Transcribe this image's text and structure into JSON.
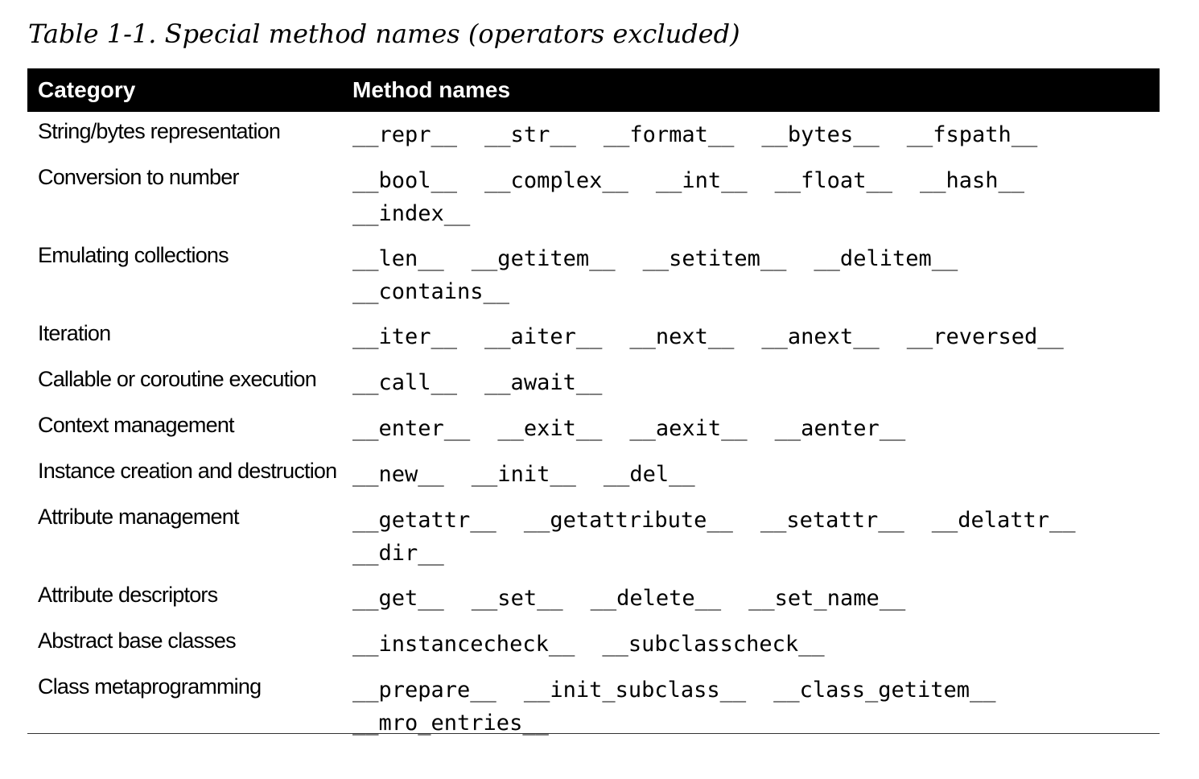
{
  "caption": "Table 1-1. Special method names (operators excluded)",
  "header": {
    "category": "Category",
    "methods": "Method names"
  },
  "rows": [
    {
      "category": "String/bytes representation",
      "methods": [
        "__repr__",
        "__str__",
        "__format__",
        "__bytes__",
        "__fspath__"
      ]
    },
    {
      "category": "Conversion to number",
      "methods": [
        "__bool__",
        "__complex__",
        "__int__",
        "__float__",
        "__hash__",
        "__index__"
      ]
    },
    {
      "category": "Emulating collections",
      "methods": [
        "__len__",
        "__getitem__",
        "__setitem__",
        "__delitem__",
        "__contains__"
      ]
    },
    {
      "category": "Iteration",
      "methods": [
        "__iter__",
        "__aiter__",
        "__next__",
        "__anext__",
        "__reversed__"
      ]
    },
    {
      "category": "Callable or coroutine execution",
      "methods": [
        "__call__",
        "__await__"
      ]
    },
    {
      "category": "Context management",
      "methods": [
        "__enter__",
        "__exit__",
        "__aexit__",
        "__aenter__"
      ]
    },
    {
      "category": "Instance creation and destruction",
      "methods": [
        "__new__",
        "__init__",
        "__del__"
      ]
    },
    {
      "category": "Attribute management",
      "methods": [
        "__getattr__",
        "__getattribute__",
        "__setattr__",
        "__delattr__",
        "__dir__"
      ]
    },
    {
      "category": "Attribute descriptors",
      "methods": [
        "__get__",
        "__set__",
        "__delete__",
        "__set_name__"
      ]
    },
    {
      "category": "Abstract base classes",
      "methods": [
        "__instancecheck__",
        "__subclasscheck__"
      ]
    },
    {
      "category": "Class metaprogramming",
      "methods": [
        "__prepare__",
        "__init_subclass__",
        "__class_getitem__",
        "__mro_entries__"
      ]
    }
  ]
}
